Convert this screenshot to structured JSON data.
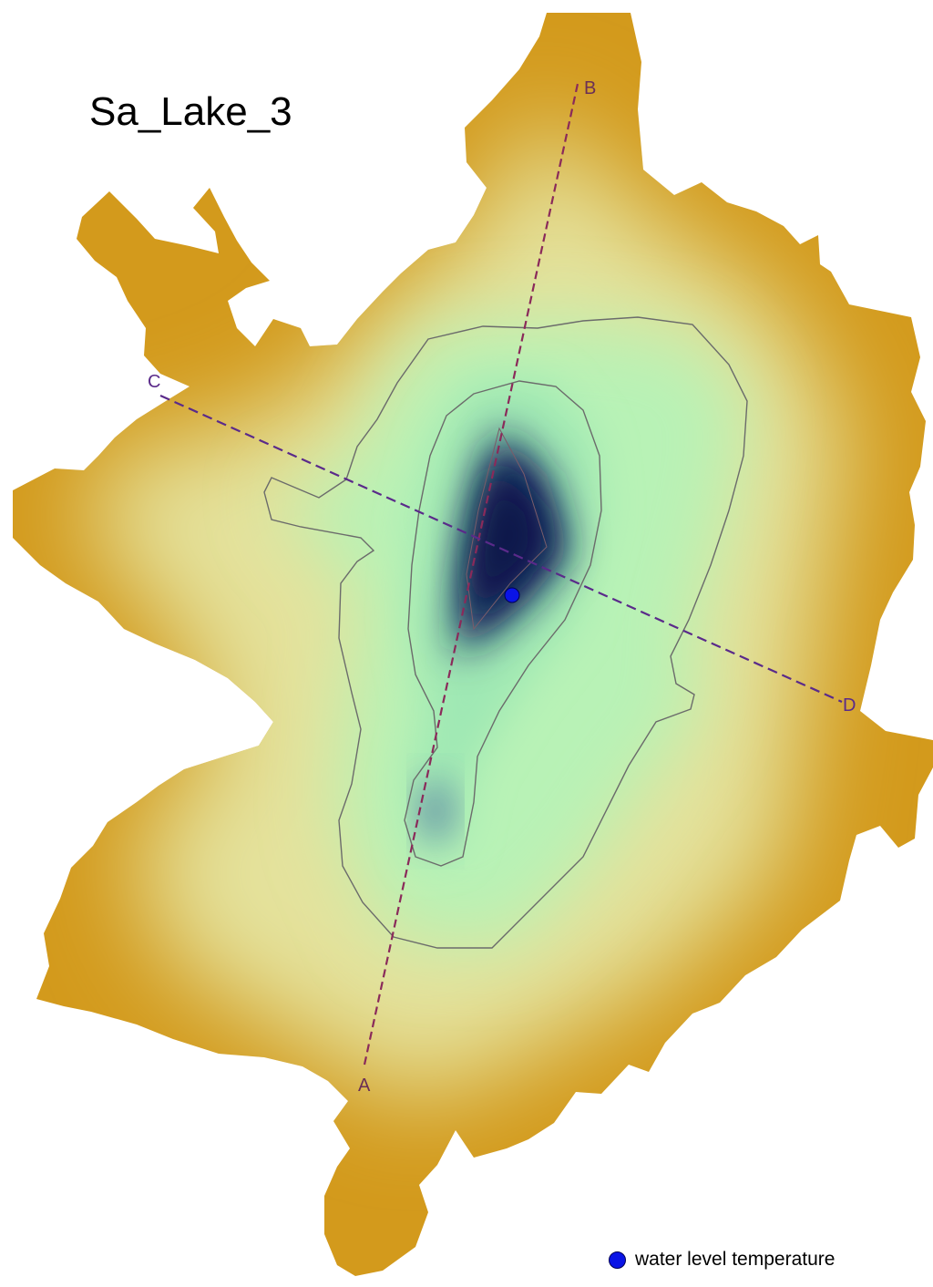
{
  "map": {
    "title": "Sa_Lake_3",
    "transects": [
      {
        "id": "transect-a-b",
        "start_label": "A",
        "end_label": "B",
        "color": "#8a2a5a"
      },
      {
        "id": "transect-c-d",
        "start_label": "C",
        "end_label": "D",
        "color": "#5a2a8a"
      }
    ],
    "legend": {
      "items": [
        {
          "symbol": "blue-dot-icon",
          "label": "water level temperature",
          "color": "#0a14e6"
        }
      ]
    },
    "colors": {
      "shore": "#d39a1c",
      "shallow": "#e8e39a",
      "mid": "#b9f2b8",
      "deep": "#0d1a5c",
      "contour": "#6b6b6b"
    }
  }
}
